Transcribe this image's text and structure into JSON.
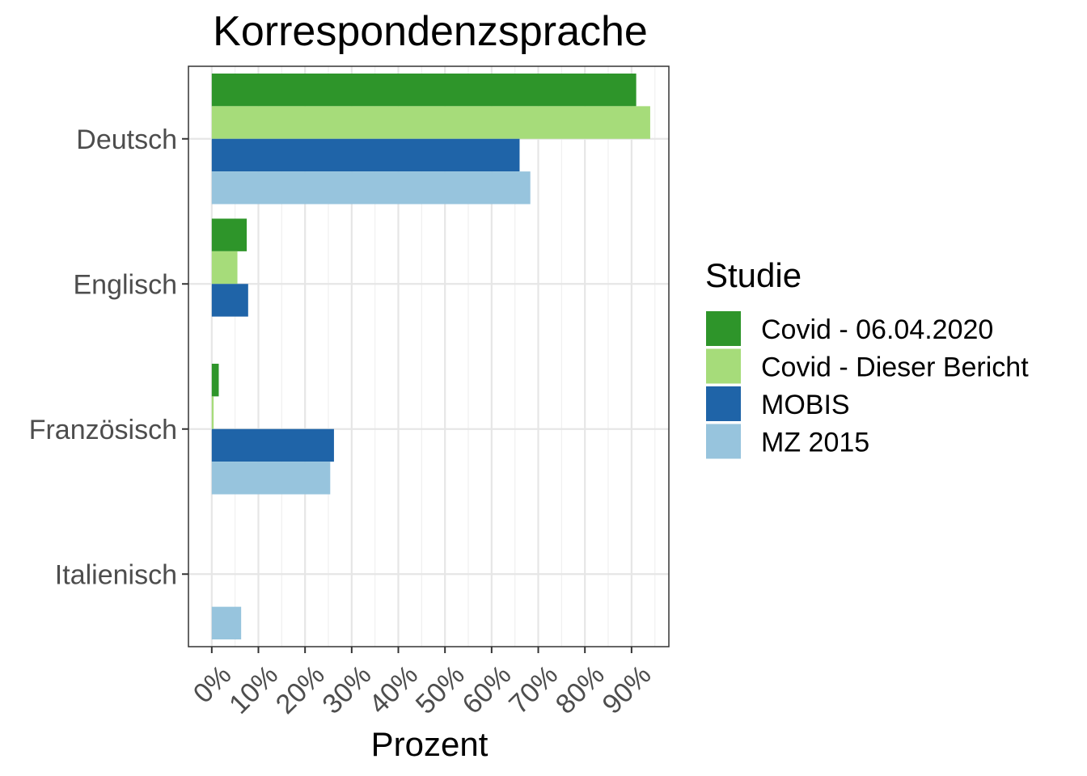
{
  "chart_data": {
    "type": "bar",
    "orientation": "horizontal",
    "title": "Korrespondenzsprache",
    "xlabel": "Prozent",
    "ylabel": "",
    "categories": [
      "Deutsch",
      "Englisch",
      "Französisch",
      "Italienisch"
    ],
    "x_ticks": [
      "0%",
      "10%",
      "20%",
      "30%",
      "40%",
      "50%",
      "60%",
      "70%",
      "80%",
      "90%"
    ],
    "xlim": [
      -5,
      98
    ],
    "grid": true,
    "legend": {
      "title": "Studie",
      "position": "right"
    },
    "series": [
      {
        "name": "Covid - 06.04.2020",
        "color": "#2e952a",
        "values": [
          91,
          7.5,
          1.5,
          null
        ]
      },
      {
        "name": "Covid - Dieser Bericht",
        "color": "#a6dc7a",
        "values": [
          94,
          5.5,
          0.4,
          null
        ]
      },
      {
        "name": "MOBIS",
        "color": "#1f64a8",
        "values": [
          66,
          7.8,
          26.2,
          null
        ]
      },
      {
        "name": "MZ 2015",
        "color": "#97c4dd",
        "values": [
          68.3,
          null,
          25.4,
          6.3
        ]
      }
    ]
  }
}
